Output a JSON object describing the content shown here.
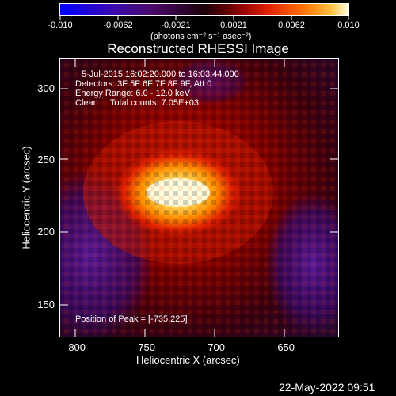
{
  "colorbar": {
    "tick_labels": [
      "-0.010",
      "-0.0062",
      "-0.0021",
      "0.0021",
      "0.0062",
      "0.010"
    ],
    "units_label": "(photons cm⁻² s⁻¹ asec⁻²)",
    "colors": {
      "low": "#0000ff",
      "mid": "#4a0a6a",
      "zero": "#1a0008",
      "warm": "#d01000",
      "hot": "#ff9000",
      "max": "#ffffe0"
    }
  },
  "plot": {
    "title": "Reconstructed RHESSI Image",
    "info_lines": [
      "5-Jul-2015 16:02:20.000 to 16:03:44.000",
      "Detectors: 3F 5F 6F 7F 8F 9F, Att 0",
      "Energy Range: 6.0 - 12.0 keV",
      "Clean     Total counts: 7.05E+03"
    ],
    "peak_label": "Position of Peak = [-735,225]",
    "x_title": "Heliocentric X (arcsec)",
    "y_title": "Heliocentric Y (arcsec)",
    "x_ticks": [
      "-800",
      "-750",
      "-700",
      "-650"
    ],
    "y_ticks": [
      "300",
      "250",
      "200",
      "150"
    ]
  },
  "timestamp": "22-May-2022 09:51"
}
